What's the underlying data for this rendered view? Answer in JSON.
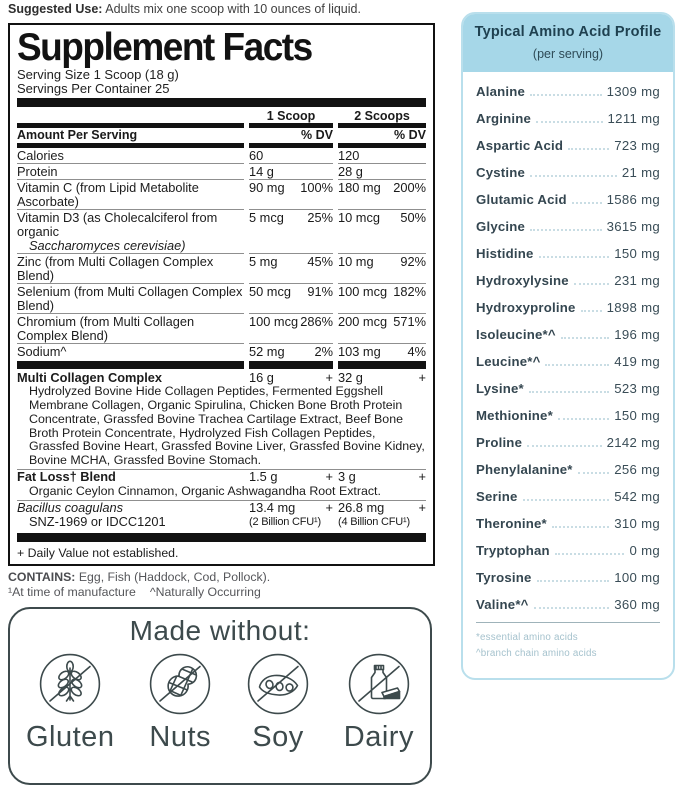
{
  "suggested_use": {
    "label": "Suggested Use:",
    "text": " Adults mix one scoop with 10 ounces of liquid."
  },
  "supplement_facts": {
    "title": "Supplement Facts",
    "serving_size": "Serving Size 1 Scoop (18 g)",
    "servings_per_container": "Servings Per Container 25",
    "columns": [
      "1 Scoop",
      "2 Scoops"
    ],
    "amount_label": "Amount Per Serving",
    "dv_label": "% DV",
    "rows": [
      {
        "name": "Calories",
        "c1": "60",
        "dv1": "",
        "c2": "120",
        "dv2": ""
      },
      {
        "name": "Protein",
        "c1": "14 g",
        "dv1": "",
        "c2": "28 g",
        "dv2": ""
      },
      {
        "name": "Vitamin C (from Lipid Metabolite Ascorbate)",
        "c1": "90 mg",
        "dv1": "100%",
        "c2": "180 mg",
        "dv2": "200%"
      },
      {
        "name": "Vitamin D3 (as Cholecalciferol from organic",
        "name2": "Saccharomyces cerevisiae)",
        "c1": "5 mcg",
        "dv1": "25%",
        "c2": "10 mcg",
        "dv2": "50%"
      },
      {
        "name": "Zinc (from Multi Collagen Complex Blend)",
        "c1": "5 mg",
        "dv1": "45%",
        "c2": "10 mg",
        "dv2": "92%"
      },
      {
        "name": "Selenium (from Multi Collagen Complex Blend)",
        "c1": "50 mcg",
        "dv1": "91%",
        "c2": "100 mcg",
        "dv2": "182%"
      },
      {
        "name": "Chromium (from Multi Collagen Complex Blend)",
        "c1": "100 mcg",
        "dv1": "286%",
        "c2": "200 mcg",
        "dv2": "571%"
      },
      {
        "name": "Sodium^",
        "c1": "52 mg",
        "dv1": "2%",
        "c2": "103 mg",
        "dv2": "4%"
      }
    ],
    "blends": [
      {
        "name": "Multi Collagen Complex",
        "bold": true,
        "c1": "16 g",
        "dv1": "+",
        "c2": "32 g",
        "dv2": "+",
        "sub": "Hydrolyzed Bovine Hide Collagen Peptides, Fermented Eggshell Membrane Collagen, Organic Spirulina, Chicken Bone Broth Protein Concentrate, Grassfed Bovine Trachea Cartilage Extract, Beef Bone Broth Protein Concentrate, Hydrolyzed Fish Collagen Peptides, Grassfed Bovine Heart, Grassfed Bovine Liver, Grassfed Bovine Kidney, Bovine MCHA, Grassfed Bovine Stomach."
      },
      {
        "name": "Fat Loss† Blend",
        "bold": true,
        "c1": "1.5 g",
        "dv1": "+",
        "c2": "3 g",
        "dv2": "+",
        "sub": "Organic Ceylon Cinnamon, Organic Ashwagandha Root Extract."
      },
      {
        "name": "Bacillus coagulans",
        "italic": true,
        "name2": "SNZ-1969 or IDCC1201",
        "c1": "13.4 mg",
        "dv1": "+",
        "c1b": "(2 Billion CFU¹)",
        "c2": "26.8 mg",
        "dv2": "+",
        "c2b": "(4 Billion CFU¹)"
      }
    ],
    "footnote": "+ Daily Value not established."
  },
  "contains": {
    "label": "CONTAINS:",
    "text": " Egg, Fish (Haddock, Cod, Pollock).",
    "note1": "¹At time of manufacture",
    "note2": "^Naturally Occurring"
  },
  "made_without": {
    "title": "Made without:",
    "items": [
      {
        "label": "Gluten",
        "icon": "wheat-icon"
      },
      {
        "label": "Nuts",
        "icon": "peanut-icon"
      },
      {
        "label": "Soy",
        "icon": "soybean-icon"
      },
      {
        "label": "Dairy",
        "icon": "milk-cheese-icon"
      }
    ]
  },
  "amino_profile": {
    "title": "Typical Amino Acid Profile",
    "subtitle": "(per serving)",
    "items": [
      {
        "name": "Alanine",
        "value": "1309 mg"
      },
      {
        "name": "Arginine",
        "value": "1211 mg"
      },
      {
        "name": "Aspartic Acid",
        "value": "723 mg"
      },
      {
        "name": "Cystine",
        "value": "21 mg"
      },
      {
        "name": "Glutamic Acid",
        "value": "1586 mg"
      },
      {
        "name": "Glycine",
        "value": "3615 mg"
      },
      {
        "name": "Histidine",
        "value": "150 mg"
      },
      {
        "name": "Hydroxylysine",
        "value": "231 mg"
      },
      {
        "name": "Hydroxyproline",
        "value": "1898 mg"
      },
      {
        "name": "Isoleucine*^",
        "value": "196 mg"
      },
      {
        "name": "Leucine*^",
        "value": "419 mg"
      },
      {
        "name": "Lysine*",
        "value": "523 mg"
      },
      {
        "name": "Methionine*",
        "value": "150 mg"
      },
      {
        "name": "Proline",
        "value": "2142 mg"
      },
      {
        "name": "Phenylalanine*",
        "value": "256 mg"
      },
      {
        "name": "Serine",
        "value": "542 mg"
      },
      {
        "name": "Theronine*",
        "value": "310 mg"
      },
      {
        "name": "Tryptophan",
        "value": "0 mg"
      },
      {
        "name": "Tyrosine",
        "value": "100 mg"
      },
      {
        "name": "Valine*^",
        "value": "360 mg"
      }
    ],
    "footnotes": [
      "*essential amino acids",
      "^branch chain amino acids"
    ]
  },
  "colors": {
    "accent_blue": "#a6d7e8",
    "panel_border_blue": "#b9dfec",
    "dark_slate": "#3d4a4c",
    "label_black": "#121212",
    "amino_text": "#344650",
    "footnote_blue": "#a5c2cd"
  }
}
